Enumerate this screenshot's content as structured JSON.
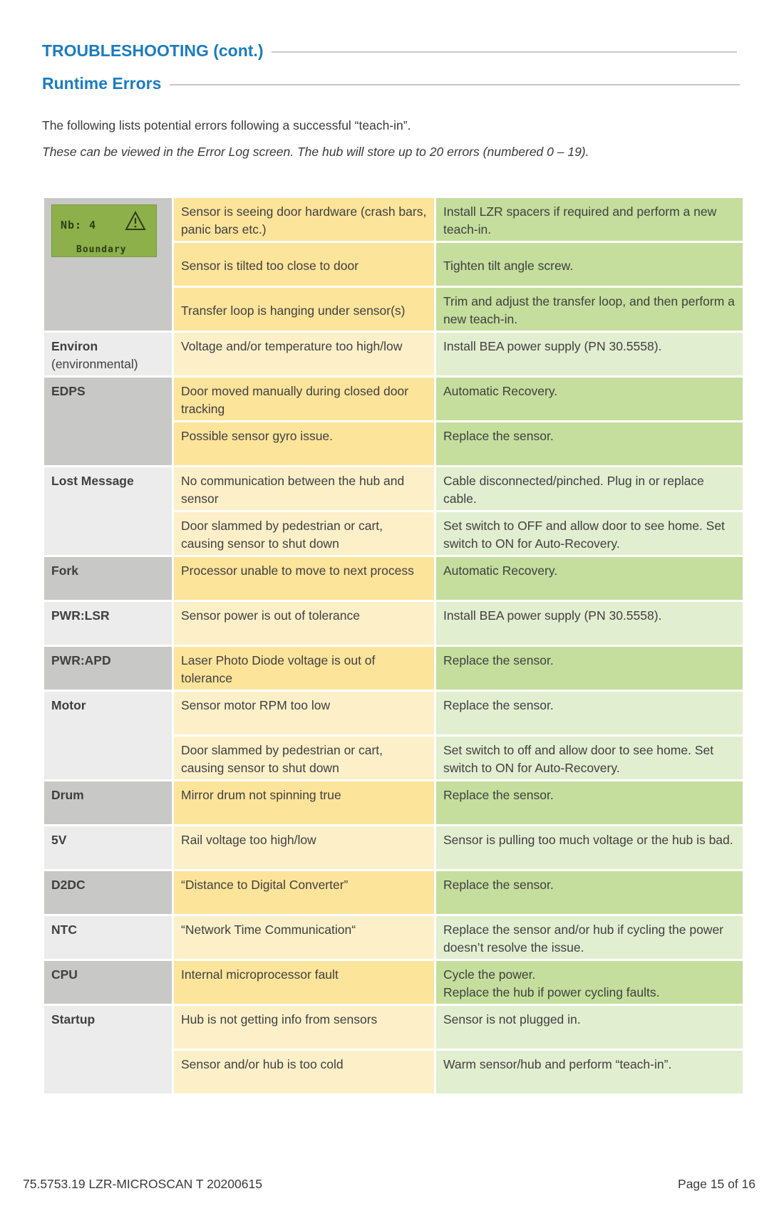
{
  "headings": {
    "section": "TROUBLESHOOTING (cont.)",
    "subsection": "Runtime Errors"
  },
  "intro": {
    "line1": "The  following lists potential errors following a successful “teach-in”.",
    "line2": "These can be viewed in the Error Log screen.  The hub will store up to 20 errors (numbered 0 – 19)."
  },
  "lcd": {
    "line1": "Nb: 4",
    "line2": "Boundary",
    "icon": "warning-triangle-icon",
    "color": "#8db04a"
  },
  "colors": {
    "heading": "#1b7cc0",
    "code_dark": "#c8c8c6",
    "code_light": "#ececec",
    "cause_dark": "#fde49b",
    "cause_light": "#fdf0c9",
    "action_dark": "#c5de9d",
    "action_light": "#e2eed0"
  },
  "errors": [
    {
      "code": "",
      "rows": [
        {
          "cause": "Sensor is seeing door hardware (crash bars, panic bars etc.)",
          "action": "Install LZR spacers if required and perform a new teach-in."
        },
        {
          "cause": "Sensor is tilted too close to door",
          "action": "Tighten tilt angle screw."
        },
        {
          "cause": "Transfer loop is hanging under sensor(s)",
          "action": "Trim and adjust the transfer loop, and then perform a new teach-in."
        }
      ]
    },
    {
      "code": "Environ",
      "code_sub": "(environmental)",
      "rows": [
        {
          "cause": "Voltage and/or temperature too high/low",
          "action": "Install BEA power supply (PN 30.5558)."
        }
      ]
    },
    {
      "code": "EDPS",
      "rows": [
        {
          "cause": "Door moved manually during closed door tracking",
          "action": "Automatic Recovery."
        },
        {
          "cause": "Possible sensor gyro issue.",
          "action": "Replace the sensor."
        }
      ]
    },
    {
      "code": "Lost Message",
      "rows": [
        {
          "cause": "No communication between the hub and sensor",
          "action": "Cable disconnected/pinched. Plug in or replace cable."
        },
        {
          "cause": "Door slammed by pedestrian or cart, causing sensor to shut down",
          "action": "Set switch to OFF and allow door to see home. Set switch to ON for Auto-Recovery."
        }
      ]
    },
    {
      "code": "Fork",
      "rows": [
        {
          "cause": "Processor unable to move to next process",
          "action": "Automatic Recovery."
        }
      ]
    },
    {
      "code": "PWR:LSR",
      "rows": [
        {
          "cause": "Sensor power is out of tolerance",
          "action": "Install BEA power supply (PN 30.5558)."
        }
      ]
    },
    {
      "code": "PWR:APD",
      "rows": [
        {
          "cause": "Laser Photo Diode voltage is out of tolerance",
          "action": "Replace the sensor."
        }
      ]
    },
    {
      "code": "Motor",
      "rows": [
        {
          "cause": "Sensor motor RPM too low",
          "action": "Replace the sensor."
        },
        {
          "cause": "Door slammed by pedestrian or cart, causing sensor to shut down",
          "action": "Set switch to off and allow door to see home. Set switch to ON for Auto-Recovery."
        }
      ]
    },
    {
      "code": "Drum",
      "rows": [
        {
          "cause": "Mirror drum not spinning true",
          "action": "Replace the sensor."
        }
      ]
    },
    {
      "code": "5V",
      "rows": [
        {
          "cause": "Rail voltage too high/low",
          "action": "Sensor is pulling too much voltage or the hub is bad."
        }
      ]
    },
    {
      "code": "D2DC",
      "rows": [
        {
          "cause": "“Distance to Digital Converter”",
          "action": "Replace the sensor."
        }
      ]
    },
    {
      "code": "NTC",
      "rows": [
        {
          "cause": "“Network Time Communication“",
          "action": "Replace the sensor and/or hub if cycling the power doesn’t resolve the issue."
        }
      ]
    },
    {
      "code": "CPU",
      "rows": [
        {
          "cause": "Internal microprocessor fault",
          "action": "Cycle the power.",
          "action_line2": "Replace the hub if power cycling faults."
        }
      ]
    },
    {
      "code": "Startup",
      "rows": [
        {
          "cause": "Hub is not getting info from sensors",
          "action": "Sensor is not plugged in."
        },
        {
          "cause": "Sensor and/or hub is too cold",
          "action": "Warm sensor/hub and perform “teach-in”."
        }
      ]
    }
  ],
  "footer": {
    "doc_id": "75.5753.19 LZR-MICROSCAN T 20200615",
    "page": "Page 15 of 16"
  }
}
